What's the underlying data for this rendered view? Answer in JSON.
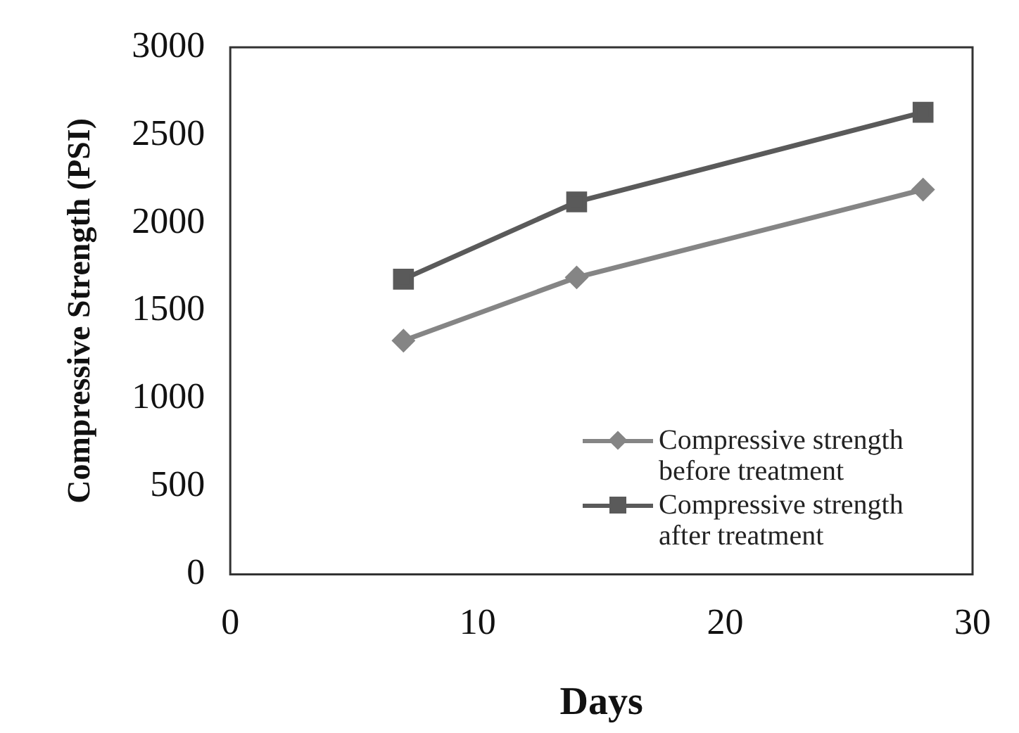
{
  "chart_data": {
    "type": "line",
    "xlabel": "Days",
    "ylabel": "Compressive Strength (PSI)",
    "x": [
      7,
      14,
      28
    ],
    "series": [
      {
        "name": "Compressive strength before treatment",
        "color": "#858585",
        "marker": "diamond",
        "values": [
          1330,
          1690,
          2190
        ]
      },
      {
        "name": "Compressive strength after treatment",
        "color": "#5a5a5a",
        "marker": "square",
        "values": [
          1680,
          2120,
          2630
        ]
      }
    ],
    "xlim": [
      0,
      30
    ],
    "xticks": [
      0,
      10,
      20,
      30
    ],
    "ylim": [
      0,
      3000
    ],
    "yticks": [
      0,
      500,
      1000,
      1500,
      2000,
      2500,
      3000
    ],
    "grid": false,
    "legend": "bottom right"
  }
}
